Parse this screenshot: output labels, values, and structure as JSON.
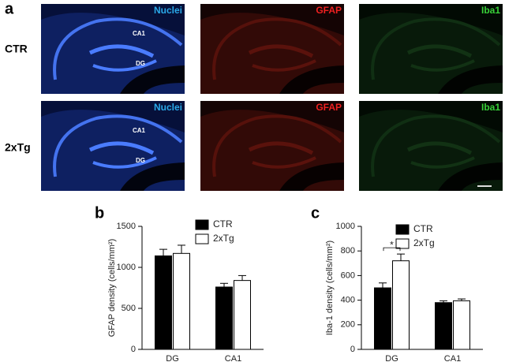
{
  "figure": {
    "panel_labels": [
      "a",
      "b",
      "c"
    ],
    "image_rows": [
      {
        "label": "CTR",
        "stains": [
          "Nuclei",
          "GFAP",
          "Iba1"
        ],
        "regions": [
          "CA1",
          "DG"
        ]
      },
      {
        "label": "2xTg",
        "stains": [
          "Nuclei",
          "GFAP",
          "Iba1"
        ],
        "regions": [
          "CA1",
          "DG"
        ]
      }
    ]
  },
  "chart_data": [
    {
      "type": "bar",
      "ylabel": "GFAP density (cells/mm²)",
      "categories": [
        "DG",
        "CA1"
      ],
      "series": [
        {
          "name": "CTR",
          "color": "#000000",
          "values": [
            1140,
            760
          ],
          "errors": [
            80,
            45
          ]
        },
        {
          "name": "2xTg",
          "color": "#ffffff",
          "values": [
            1170,
            840
          ],
          "errors": [
            100,
            60
          ]
        }
      ],
      "ylim": [
        0,
        1500
      ],
      "yticks": [
        0,
        500,
        1000,
        1500
      ],
      "legend": "upper right"
    },
    {
      "type": "bar",
      "ylabel": "Iba-1 density (cells/mm²)",
      "categories": [
        "DG",
        "CA1"
      ],
      "series": [
        {
          "name": "CTR",
          "color": "#000000",
          "values": [
            500,
            380
          ],
          "errors": [
            40,
            15
          ]
        },
        {
          "name": "2xTg",
          "color": "#ffffff",
          "values": [
            720,
            395
          ],
          "errors": [
            55,
            15
          ]
        }
      ],
      "ylim": [
        0,
        1000
      ],
      "yticks": [
        0,
        200,
        400,
        600,
        800,
        1000
      ],
      "legend": "upper right",
      "annotations": [
        "*"
      ]
    }
  ]
}
